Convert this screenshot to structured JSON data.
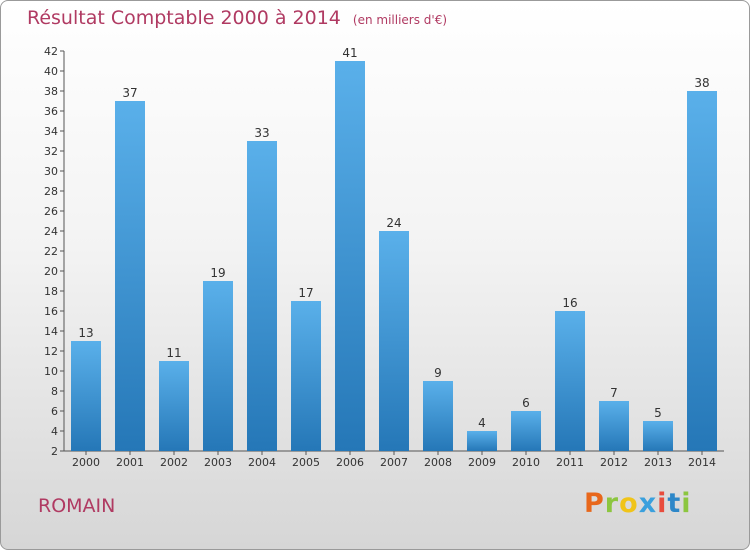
{
  "header": {
    "title": "Résultat Comptable 2000 à 2014",
    "unit": "(en milliers d'€)"
  },
  "footer": {
    "commune": "ROMAIN",
    "logo_text": "Proxiti",
    "logo_colors": [
      "#e8671b",
      "#8cc63f",
      "#f0c419",
      "#3aa0dd",
      "#e84c3d",
      "#2d87c8",
      "#8cc63f"
    ]
  },
  "colors": {
    "bar_top": "#5ab0ea",
    "bar_bottom": "#2577b7",
    "title": "#b03a62"
  },
  "chart_data": {
    "type": "bar",
    "title": "Résultat Comptable 2000 à 2014",
    "categories": [
      "2000",
      "2001",
      "2002",
      "2003",
      "2004",
      "2005",
      "2006",
      "2007",
      "2008",
      "2009",
      "2010",
      "2011",
      "2012",
      "2013",
      "2014"
    ],
    "values": [
      13,
      37,
      11,
      19,
      33,
      17,
      41,
      24,
      9,
      4,
      6,
      16,
      7,
      5,
      38
    ],
    "ylim": [
      2,
      42
    ],
    "yticks": [
      2,
      4,
      6,
      8,
      10,
      12,
      14,
      16,
      18,
      20,
      22,
      24,
      26,
      28,
      30,
      32,
      34,
      36,
      38,
      40,
      42
    ],
    "grid": false,
    "legend": "none"
  }
}
